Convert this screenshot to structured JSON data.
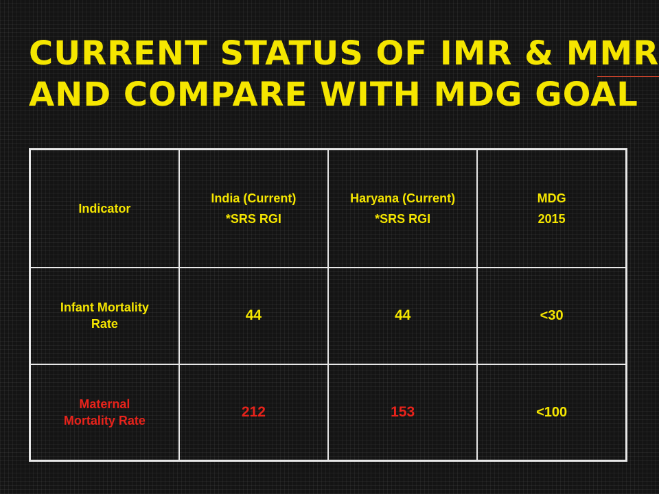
{
  "slide": {
    "title_line1": "Current Status of IMR & MMR",
    "title_line2": "and Compare with MDG Goal"
  },
  "table": {
    "header": {
      "indicator": "Indicator",
      "india_line1": "India (Current)",
      "india_line2": "*SRS RGI",
      "haryana_line1": "Haryana (Current)",
      "haryana_line2": "*SRS RGI",
      "mdg_line1": "MDG",
      "mdg_line2": "2015"
    },
    "rows": [
      {
        "indicator_line1": "Infant Mortality",
        "indicator_line2": "Rate",
        "india": "44",
        "haryana": "44",
        "mdg": "<30"
      },
      {
        "indicator_line1": "Maternal",
        "indicator_line2": "Mortality Rate",
        "india": "212",
        "haryana": "153",
        "mdg": "<100"
      }
    ]
  },
  "colors": {
    "title": "#f5e600",
    "highlight_red": "#e8231b",
    "table_border": "#e8e8e8",
    "background": "#141414"
  }
}
